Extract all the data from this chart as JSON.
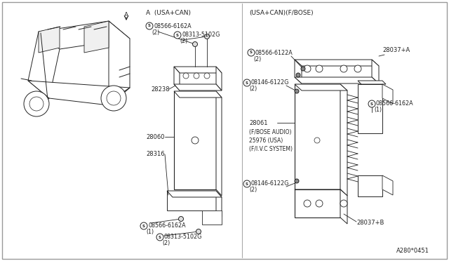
{
  "bg_color": "#ffffff",
  "line_color": "#222222",
  "text_color": "#222222",
  "diagram_id": "A280*0451",
  "left_header": "A  (USA+CAN)",
  "right_header": "(USA+CAN)(F/BOSE)",
  "figsize": [
    6.4,
    3.72
  ],
  "dpi": 100
}
